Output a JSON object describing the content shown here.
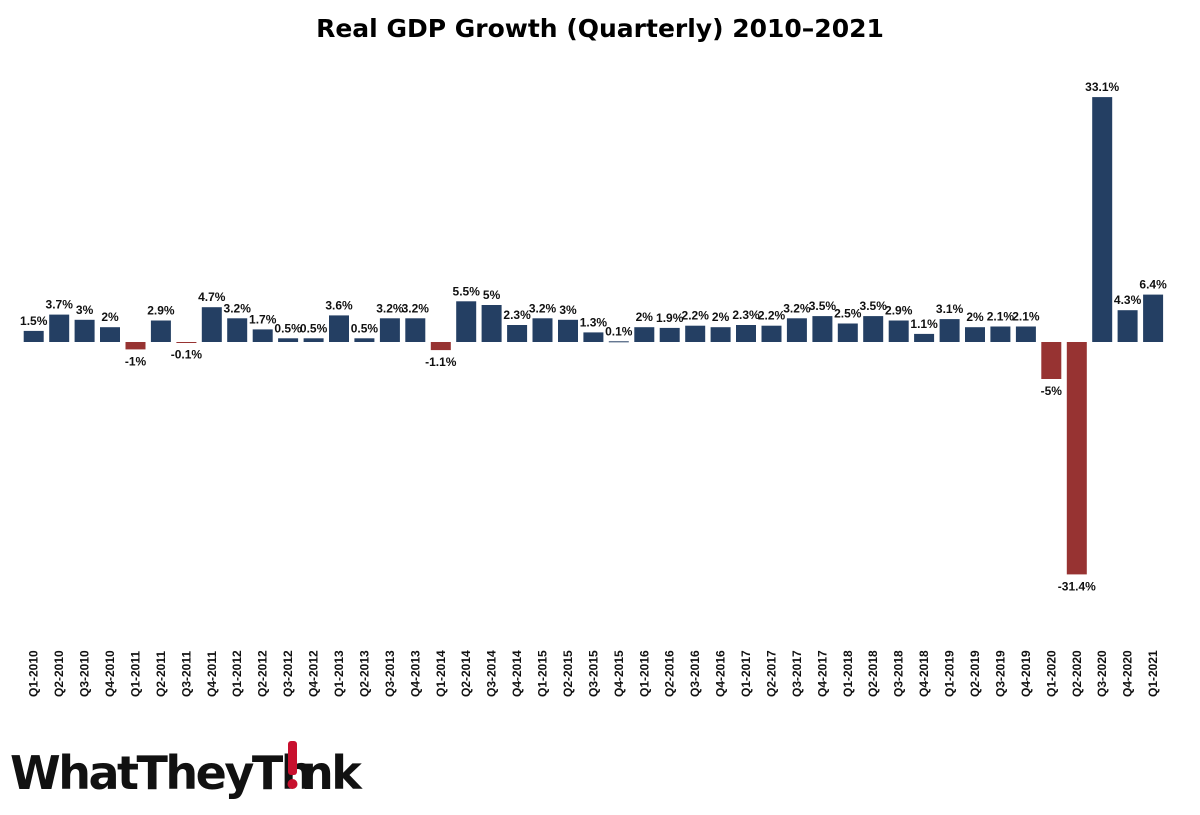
{
  "chart_data": {
    "type": "bar",
    "title": "Real GDP Growth (Quarterly) 2010–2021",
    "xlabel": "",
    "ylabel": "",
    "ylim": [
      -31.4,
      33.1
    ],
    "grid": false,
    "legend": "none",
    "colors": {
      "positive": "#243f63",
      "negative": "#973332"
    },
    "categories": [
      "Q1-2010",
      "Q2-2010",
      "Q3-2010",
      "Q4-2010",
      "Q1-2011",
      "Q2-2011",
      "Q3-2011",
      "Q4-2011",
      "Q1-2012",
      "Q2-2012",
      "Q3-2012",
      "Q4-2012",
      "Q1-2013",
      "Q2-2013",
      "Q3-2013",
      "Q4-2013",
      "Q1-2014",
      "Q2-2014",
      "Q3-2014",
      "Q4-2014",
      "Q1-2015",
      "Q2-2015",
      "Q3-2015",
      "Q4-2015",
      "Q1-2016",
      "Q2-2016",
      "Q3-2016",
      "Q4-2016",
      "Q1-2017",
      "Q2-2017",
      "Q3-2017",
      "Q4-2017",
      "Q1-2018",
      "Q2-2018",
      "Q3-2018",
      "Q4-2018",
      "Q1-2019",
      "Q2-2019",
      "Q3-2019",
      "Q4-2019",
      "Q1-2020",
      "Q2-2020",
      "Q3-2020",
      "Q4-2020",
      "Q1-2021"
    ],
    "values": [
      1.5,
      3.7,
      3,
      2,
      -1,
      2.9,
      -0.1,
      4.7,
      3.2,
      1.7,
      0.5,
      0.5,
      3.6,
      0.5,
      3.2,
      3.2,
      -1.1,
      5.5,
      5,
      2.3,
      3.2,
      3,
      1.3,
      0.1,
      2,
      1.9,
      2.2,
      2,
      2.3,
      2.2,
      3.2,
      3.5,
      2.5,
      3.5,
      2.9,
      1.1,
      3.1,
      2,
      2.1,
      2.1,
      -5,
      -31.4,
      33.1,
      4.3,
      6.4
    ],
    "data_labels": [
      "1.5%",
      "3.7%",
      "3%",
      "2%",
      "-1%",
      "2.9%",
      "-0.1%",
      "4.7%",
      "3.2%",
      "1.7%",
      "0.5%",
      "0.5%",
      "3.6%",
      "0.5%",
      "3.2%",
      "3.2%",
      "-1.1%",
      "5.5%",
      "5%",
      "2.3%",
      "3.2%",
      "3%",
      "1.3%",
      "0.1%",
      "2%",
      "1.9%",
      "2.2%",
      "2%",
      "2.3%",
      "2.2%",
      "3.2%",
      "3.5%",
      "2.5%",
      "3.5%",
      "2.9%",
      "1.1%",
      "3.1%",
      "2%",
      "2.1%",
      "2.1%",
      "-5%",
      "-31.4%",
      "33.1%",
      "4.3%",
      "6.4%"
    ]
  },
  "logo": {
    "text": "WhatTheyThink",
    "accent_color": "#c8102e"
  }
}
